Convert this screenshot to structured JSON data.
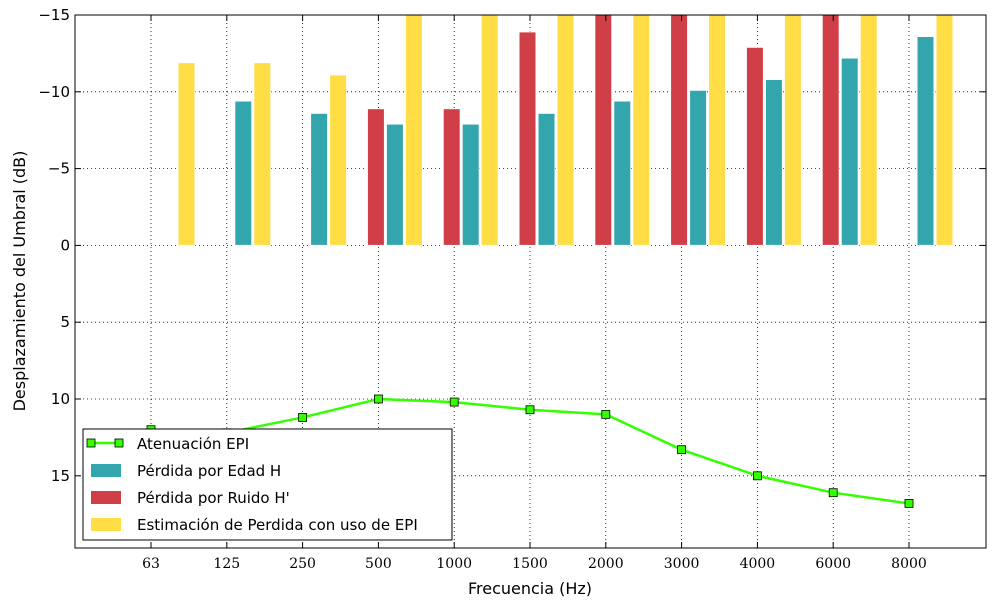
{
  "chart_data": {
    "type": "bar",
    "xlabel": "Frecuencia (Hz)",
    "ylabel": "Desplazamiento del Umbral (dB)",
    "categories": [
      "63",
      "125",
      "250",
      "500",
      "1000",
      "1500",
      "2000",
      "3000",
      "4000",
      "6000",
      "8000"
    ],
    "ylim": [
      19.7,
      -15
    ],
    "y_axis_inverted": true,
    "yticks": [
      -15,
      -10,
      -5,
      0,
      5,
      10,
      15
    ],
    "ytick_labels": [
      "−15",
      "−10",
      "−5",
      "0",
      "5",
      "10",
      "15"
    ],
    "grid": true,
    "legend_position": "lower-left",
    "series": [
      {
        "name": "Atenuación EPI",
        "kind": "line",
        "color": "#33ff00",
        "marker": "square",
        "values": [
          12,
          12.2,
          11.2,
          10,
          10.2,
          10.7,
          11,
          13.3,
          15,
          16.1,
          16.8
        ]
      },
      {
        "name": "Pérdida por Edad H",
        "kind": "bar",
        "color": "#33a6ad",
        "values": [
          null,
          -9.4,
          -8.6,
          -7.9,
          -7.9,
          -8.6,
          -9.4,
          -10.1,
          -10.8,
          -12.2,
          -13.6
        ]
      },
      {
        "name": "Pérdida por Ruido H'",
        "kind": "bar",
        "color": "#d03e48",
        "values": [
          null,
          null,
          null,
          -8.9,
          -8.9,
          -13.9,
          -15,
          -15,
          -12.9,
          -15,
          null
        ]
      },
      {
        "name": "Estimación de Perdida con uso de EPI",
        "kind": "bar",
        "color": "#ffdd44",
        "values": [
          -11.9,
          -11.9,
          -11.1,
          -15,
          -15,
          -15,
          -15,
          -15,
          -15,
          -15,
          -15
        ]
      }
    ]
  }
}
